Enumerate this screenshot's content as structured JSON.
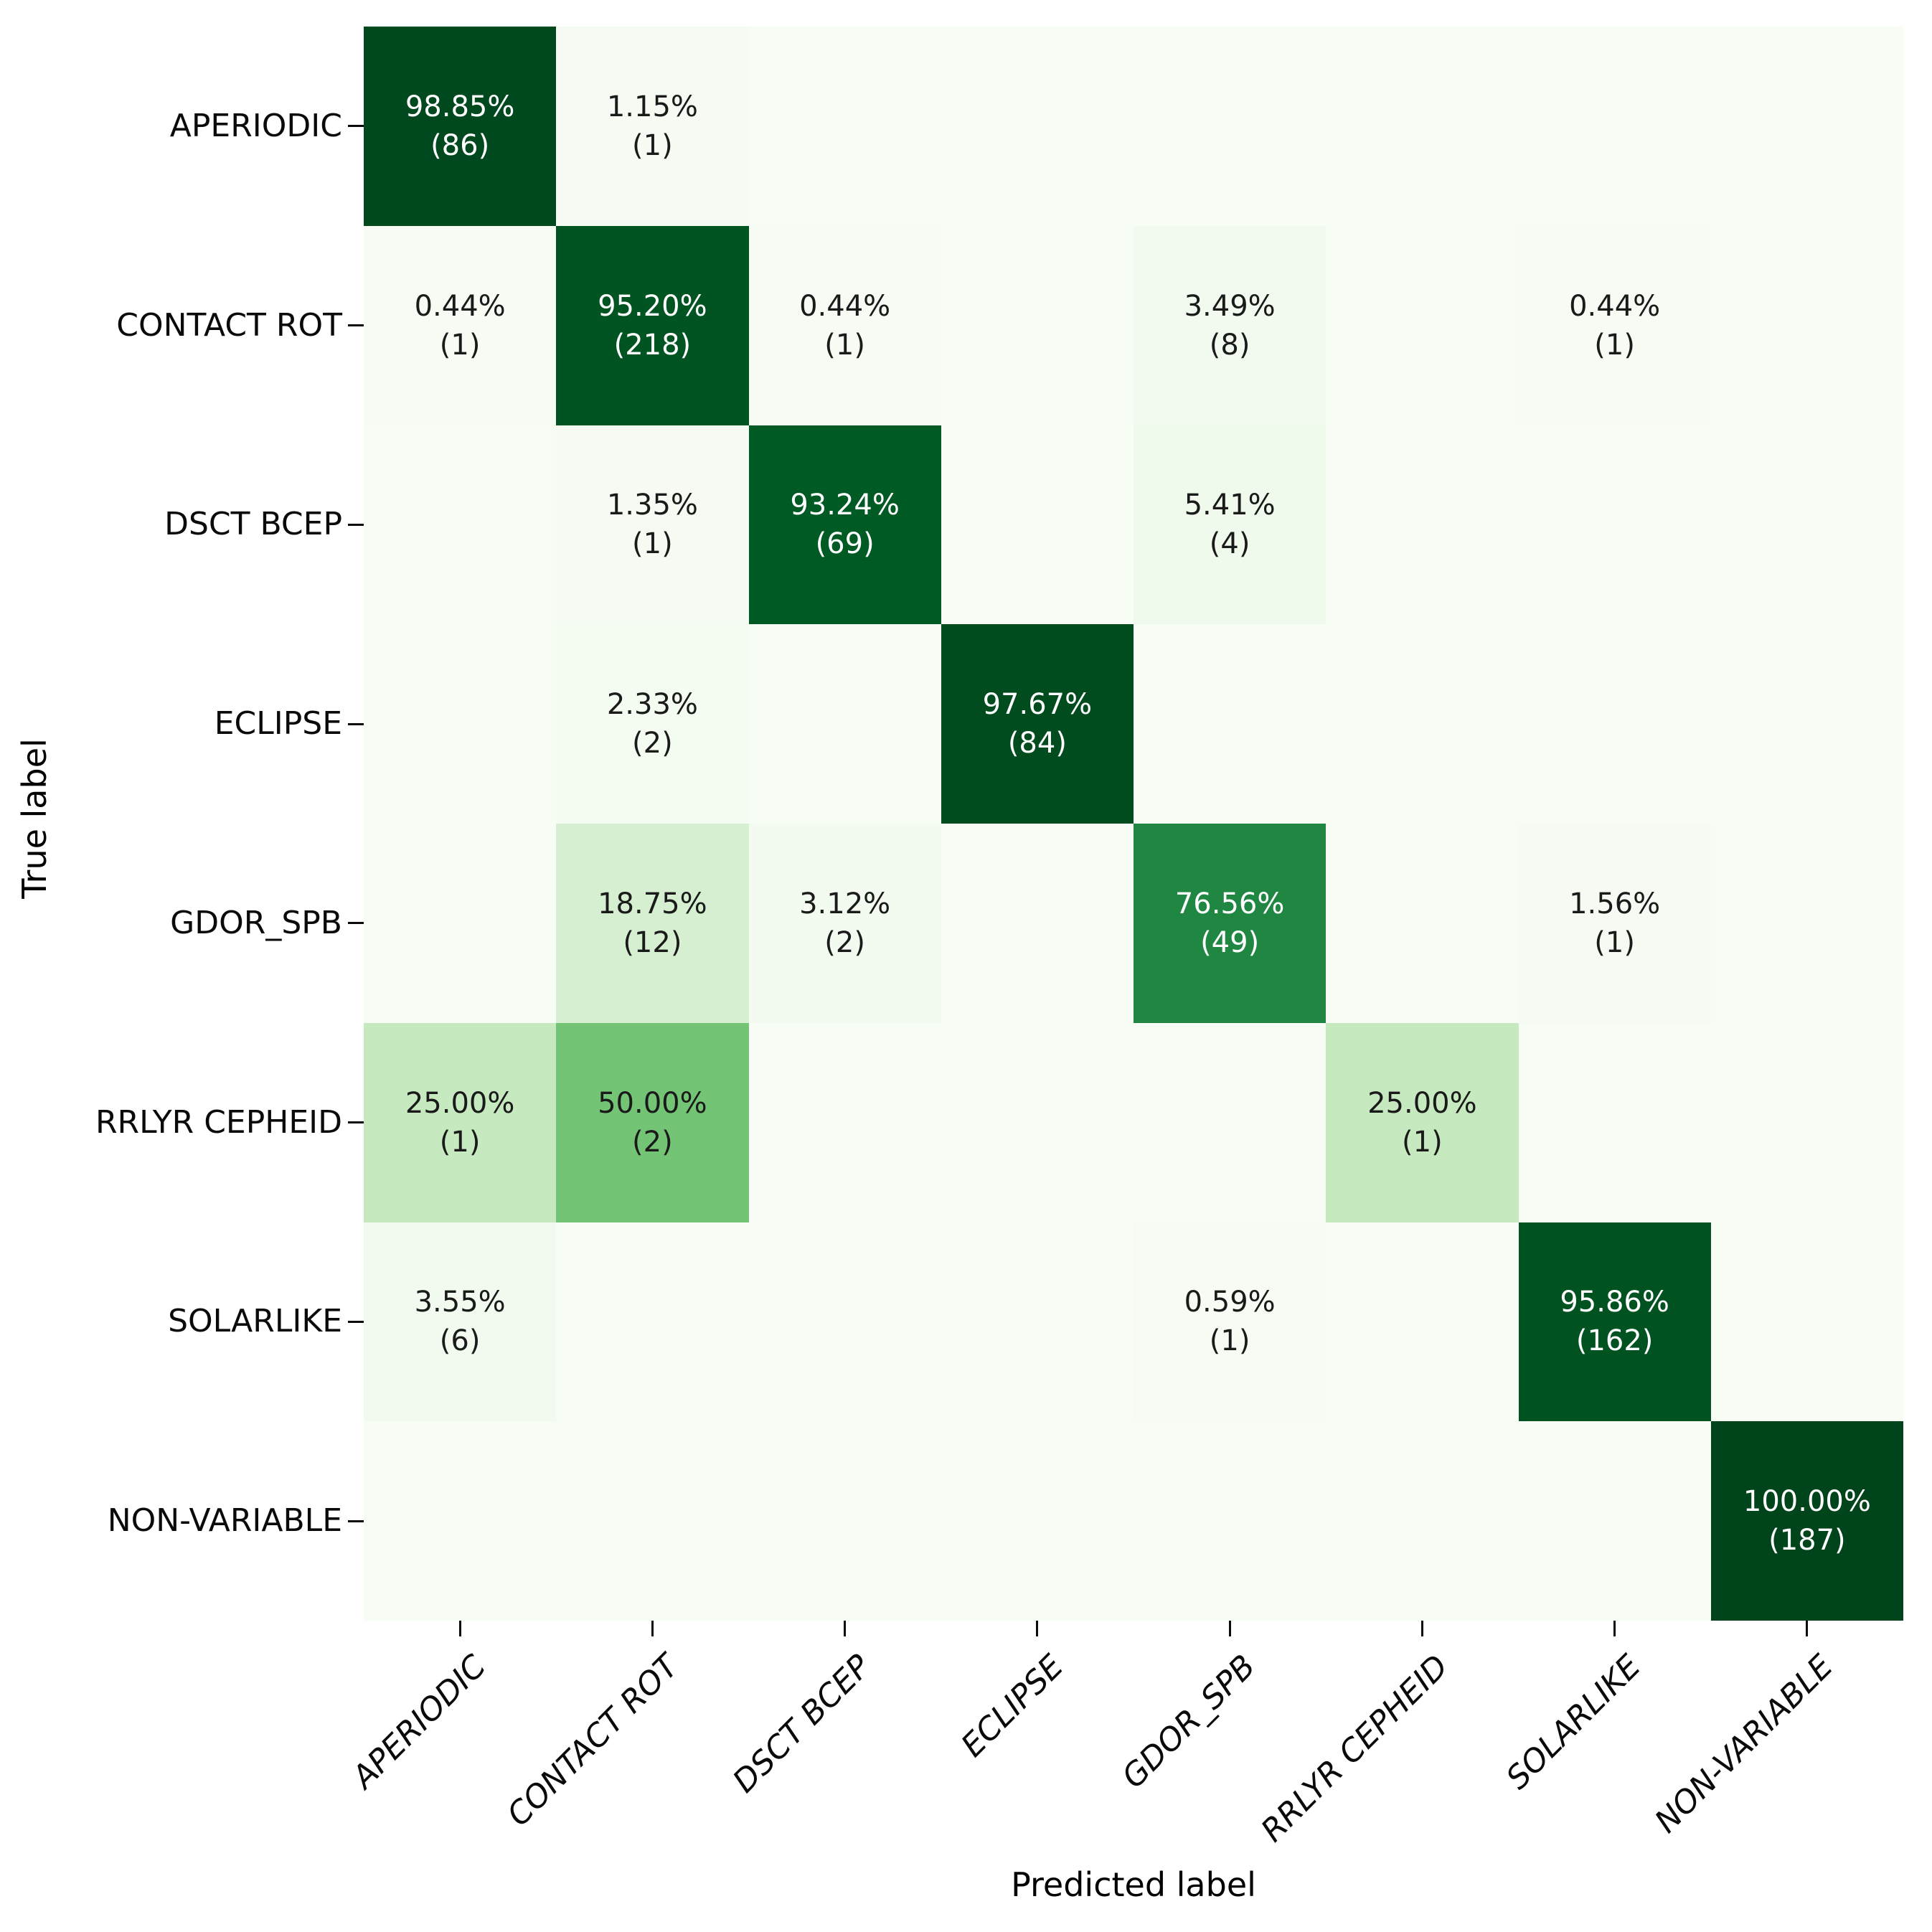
{
  "figure": {
    "xlabel": "Predicted label",
    "ylabel": "True label"
  },
  "chart_data": {
    "type": "heatmap",
    "subtype": "confusion_matrix",
    "title": "",
    "xlabel": "Predicted label",
    "ylabel": "True label",
    "categories": [
      "APERIODIC",
      "CONTACT ROT",
      "DSCT BCEP",
      "ECLIPSE",
      "GDOR_SPB",
      "RRLYR CEPHEID",
      "SOLARLIKE",
      "NON-VARIABLE"
    ],
    "x_tick_labels": [
      "APERIODIC",
      "CONTACT ROT",
      "DSCT BCEP",
      "ECLIPSE",
      "GDOR_SPB",
      "RRLYR CEPHEID",
      "SOLARLIKE",
      "NON-VARIABLE"
    ],
    "y_tick_labels": [
      "APERIODIC",
      "CONTACT ROT",
      "DSCT BCEP",
      "ECLIPSE",
      "GDOR_SPB",
      "RRLYR CEPHEID",
      "SOLARLIKE",
      "NON-VARIABLE"
    ],
    "cell_value_format": "percent_with_count",
    "matrix_percent": [
      [
        98.85,
        1.15,
        0,
        0,
        0,
        0,
        0,
        0
      ],
      [
        0.44,
        95.2,
        0.44,
        0,
        3.49,
        0,
        0.44,
        0
      ],
      [
        0,
        1.35,
        93.24,
        0,
        5.41,
        0,
        0,
        0
      ],
      [
        0,
        2.33,
        0,
        97.67,
        0,
        0,
        0,
        0
      ],
      [
        0,
        18.75,
        3.12,
        0,
        76.56,
        0,
        1.56,
        0
      ],
      [
        25.0,
        50.0,
        0,
        0,
        0,
        25.0,
        0,
        0
      ],
      [
        3.55,
        0,
        0,
        0,
        0.59,
        0,
        95.86,
        0
      ],
      [
        0,
        0,
        0,
        0,
        0,
        0,
        0,
        100.0
      ]
    ],
    "matrix_count": [
      [
        86,
        1,
        0,
        0,
        0,
        0,
        0,
        0
      ],
      [
        1,
        218,
        1,
        0,
        8,
        0,
        1,
        0
      ],
      [
        0,
        1,
        69,
        0,
        4,
        0,
        0,
        0
      ],
      [
        0,
        2,
        0,
        84,
        0,
        0,
        0,
        0
      ],
      [
        0,
        12,
        2,
        0,
        49,
        0,
        1,
        0
      ],
      [
        1,
        2,
        0,
        0,
        0,
        1,
        0,
        0
      ],
      [
        6,
        0,
        0,
        0,
        1,
        0,
        162,
        0
      ],
      [
        0,
        0,
        0,
        0,
        0,
        0,
        0,
        187
      ]
    ],
    "value_range": [
      0,
      100
    ],
    "colormap": {
      "name": "Greens",
      "stops": [
        "#f7fcf5",
        "#e5f5e0",
        "#c7e9c0",
        "#a1d99b",
        "#74c476",
        "#41ab5d",
        "#238b45",
        "#006d2c",
        "#00441b"
      ]
    },
    "text_color_on_dark": "#ffffff",
    "text_color_on_light": "#1a1a1a",
    "white_text_threshold": 0.6,
    "grid": false,
    "legend": false,
    "colorbar": false
  }
}
